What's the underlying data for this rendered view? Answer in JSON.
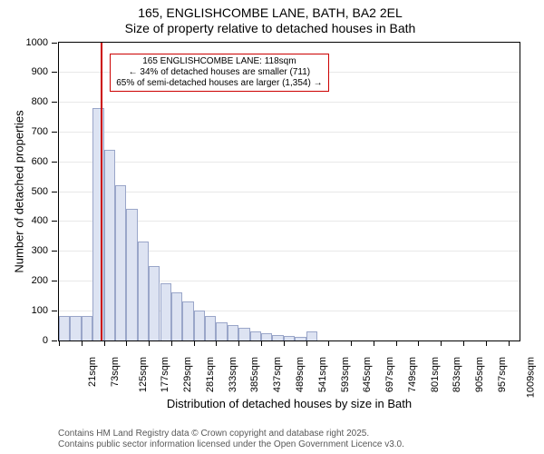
{
  "title_line1": "165, ENGLISHCOMBE LANE, BATH, BA2 2EL",
  "title_line2": "Size of property relative to detached houses in Bath",
  "title_fontsize": 14,
  "y_axis_label": "Number of detached properties",
  "x_axis_label": "Distribution of detached houses by size in Bath",
  "axis_label_fontsize": 13,
  "tick_fontsize": 11,
  "chart": {
    "type": "histogram",
    "background_color": "#ffffff",
    "border_color": "#000000",
    "grid_color": "#e8e8e8",
    "bar_fill": "#dde3f2",
    "bar_stroke": "#9aa6c9",
    "marker_color": "#cc0000",
    "annotation_border": "#cc0000",
    "ylim": [
      0,
      1000
    ],
    "ytick_step": 100,
    "x_min": 21,
    "x_bin_width": 26,
    "x_tick_interval": 2,
    "x_num_bins": 41,
    "bar_values": [
      80,
      80,
      80,
      780,
      640,
      520,
      440,
      330,
      250,
      190,
      160,
      130,
      100,
      80,
      60,
      50,
      40,
      28,
      22,
      18,
      14,
      10,
      28,
      0,
      0,
      0,
      0,
      0,
      0,
      0,
      0,
      0,
      0,
      0,
      0,
      0,
      0,
      0,
      0,
      0,
      0
    ]
  },
  "marker": {
    "value_sqm": 118,
    "line1": "165 ENGLISHCOMBE LANE: 118sqm",
    "line2": "← 34% of detached houses are smaller (711)",
    "line3": "65% of semi-detached houses are larger (1,354) →",
    "fontsize": 10
  },
  "footer_line1": "Contains HM Land Registry data © Crown copyright and database right 2025.",
  "footer_line2": "Contains public sector information licensed under the Open Government Licence v3.0.",
  "footer_fontsize": 10,
  "footer_color": "#585858"
}
